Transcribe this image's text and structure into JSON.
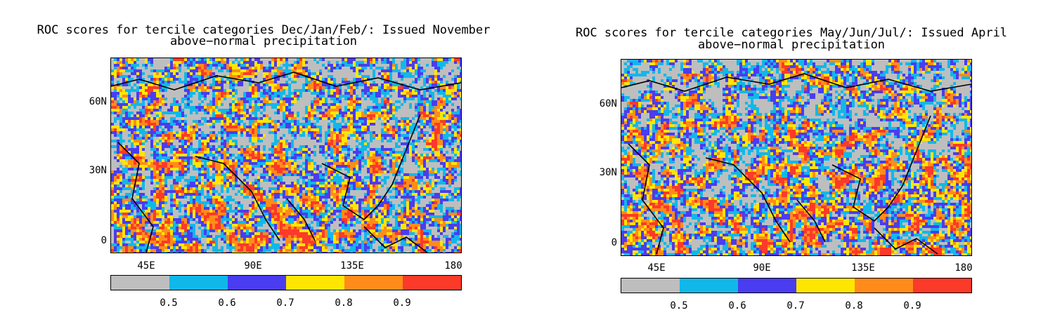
{
  "palette": {
    "gray": "#bebebe",
    "cyan": "#10b8ea",
    "blue": "#4a3cf0",
    "yellow": "#ffe600",
    "orange": "#ff8c1a",
    "red": "#fb3a2a",
    "coast": "#000000"
  },
  "colorbar": {
    "colors": [
      "#bebebe",
      "#10b8ea",
      "#4a3cf0",
      "#ffe600",
      "#ff8c1a",
      "#fb3a2a"
    ],
    "labels": [
      "0.5",
      "0.6",
      "0.7",
      "0.8",
      "0.9"
    ]
  },
  "panels": [
    {
      "title_line1": "ROC scores for tercile categories Dec/Jan/Feb/: Issued November",
      "title_line2": "above−normal precipitation",
      "y_labels": [
        "60N",
        "30N",
        "0"
      ],
      "x_labels": [
        "45E",
        "90E",
        "135E",
        "180"
      ]
    },
    {
      "title_line1": "ROC scores for tercile categories May/Jun/Jul/: Issued April",
      "title_line2": "above−normal precipitation",
      "y_labels": [
        "60N",
        "30N",
        "0"
      ],
      "x_labels": [
        "45E",
        "90E",
        "135E",
        "180"
      ]
    }
  ]
}
